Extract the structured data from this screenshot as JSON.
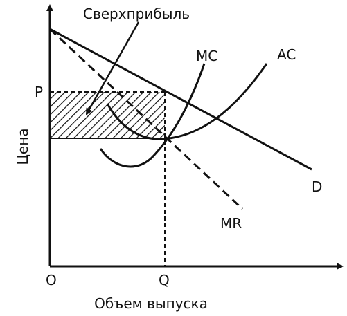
{
  "labels": {
    "profit": "Сверхприбыль",
    "mc": "MC",
    "ac": "AC",
    "price": "P",
    "y_axis": "Цена",
    "demand": "D",
    "mr": "MR",
    "origin": "O",
    "quantity": "Q",
    "x_axis": "Объем выпуска"
  }
}
